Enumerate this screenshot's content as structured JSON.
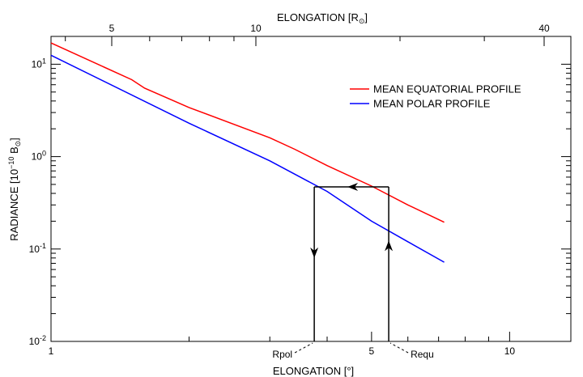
{
  "chart_data": {
    "type": "line",
    "title": "",
    "xlabel": "ELONGATION [°]",
    "x2label_main": "ELONGATION [R",
    "x2label_sub": "⊙",
    "x2label_end": "]",
    "ylabel_main": "RADIANCE [10",
    "ylabel_exp": "−10",
    "ylabel_unit": " B",
    "ylabel_unit_sub": "⊙",
    "ylabel_end": "]",
    "xscale": "log",
    "yscale": "log",
    "xlim": [
      1,
      13.6
    ],
    "ylim": [
      0.01,
      20
    ],
    "x_ticks": [
      {
        "value": 1,
        "label": "1"
      },
      {
        "value": 5,
        "label": "5"
      },
      {
        "value": 10,
        "label": "10"
      }
    ],
    "x2_ticks": [
      {
        "value": 5,
        "label": "5"
      },
      {
        "value": 10,
        "label": "10"
      },
      {
        "value": 40,
        "label": "40"
      }
    ],
    "y_ticks": [
      {
        "value": 0.01,
        "base": "10",
        "exp": "-2"
      },
      {
        "value": 0.1,
        "base": "10",
        "exp": "-1"
      },
      {
        "value": 1,
        "base": "10",
        "exp": "0"
      },
      {
        "value": 10,
        "base": "10",
        "exp": "1"
      }
    ],
    "series": [
      {
        "name": "MEAN EQUATORIAL PROFILE",
        "color": "#ff0000",
        "x": [
          1.0,
          1.5,
          1.6,
          2.0,
          3.0,
          3.4,
          4.0,
          5.0,
          6.0,
          7.2
        ],
        "y": [
          17.0,
          6.8,
          5.5,
          3.4,
          1.6,
          1.2,
          0.8,
          0.48,
          0.3,
          0.195
        ]
      },
      {
        "name": "MEAN POLAR PROFILE",
        "color": "#0000ff",
        "x": [
          1.0,
          2.0,
          3.0,
          4.0,
          5.0,
          6.0,
          7.2
        ],
        "y": [
          12.5,
          2.3,
          0.9,
          0.42,
          0.2,
          0.12,
          0.072
        ]
      }
    ],
    "legend": "top-right",
    "annotations": [
      {
        "label": "Rpol",
        "x": 3.75
      },
      {
        "label": "Requ",
        "x": 5.45
      }
    ],
    "arrow_path": {
      "x_left": 3.75,
      "x_right": 5.45,
      "y_level": 0.47
    }
  }
}
